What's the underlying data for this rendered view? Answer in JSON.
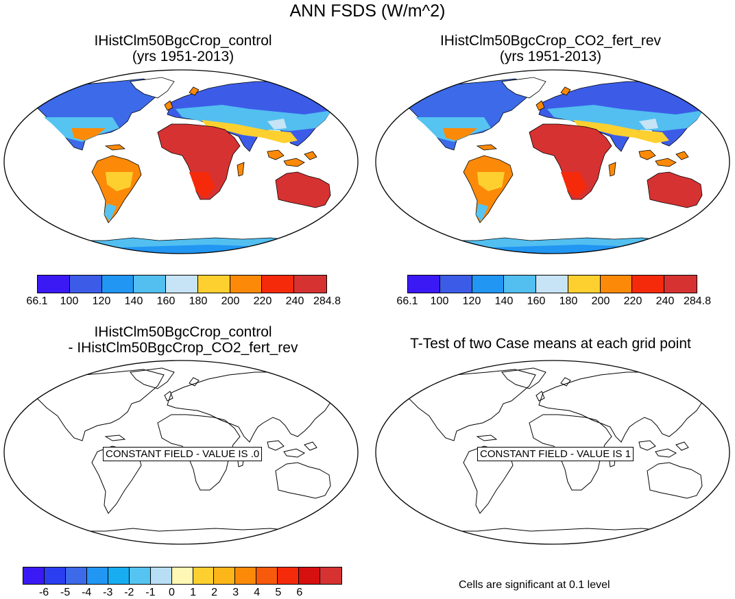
{
  "title": "ANN FSDS (W/m^2)",
  "panels": {
    "tl": {
      "line1": "IHistClm50BgcCrop_control",
      "line2": "(yrs 1951-2013)"
    },
    "tr": {
      "line1": "IHistClm50BgcCrop_CO2_fert_rev",
      "line2": "(yrs 1951-2013)"
    },
    "bl": {
      "line1": "IHistClm50BgcCrop_control",
      "line2": "- IHistClm50BgcCrop_CO2_fert_rev",
      "label": "CONSTANT FIELD - VALUE IS .0"
    },
    "br": {
      "line1": "T-Test of two Case means at each grid point",
      "label": "CONSTANT FIELD - VALUE IS 1"
    }
  },
  "colorbar_top": {
    "colors": [
      "#3b19f5",
      "#3c5ce8",
      "#2196f3",
      "#52bff0",
      "#c6e4f5",
      "#fdd030",
      "#fc8a08",
      "#f52a0a",
      "#d63232"
    ],
    "labels": [
      "66.1",
      "100",
      "120",
      "140",
      "160",
      "180",
      "200",
      "220",
      "240",
      "284.8"
    ]
  },
  "colorbar_bottom": {
    "colors": [
      "#3b19f5",
      "#2b3ef0",
      "#3c6ae8",
      "#2196f3",
      "#18acf0",
      "#56c4f0",
      "#b8def5",
      "#fef8b4",
      "#fdd030",
      "#fcb619",
      "#fc8a08",
      "#f75a0a",
      "#f52a0a",
      "#d60f0f",
      "#d63232"
    ],
    "labels": [
      "-6",
      "-5",
      "-4",
      "-3",
      "-2",
      "-1",
      "0",
      "1",
      "2",
      "3",
      "4",
      "5",
      "6"
    ]
  },
  "note": "Cells are significant at 0.1 level",
  "chart_data": {
    "type": "heatmap",
    "title": "ANN FSDS (W/m^2)",
    "variable": "FSDS",
    "units": "W/m^2",
    "panels": [
      {
        "case": "IHistClm50BgcCrop_control",
        "years": "1951-2013",
        "levels": [
          100,
          120,
          140,
          160,
          180,
          200,
          220,
          240
        ],
        "range": [
          66.1,
          284.8
        ]
      },
      {
        "case": "IHistClm50BgcCrop_CO2_fert_rev",
        "years": "1951-2013",
        "levels": [
          100,
          120,
          140,
          160,
          180,
          200,
          220,
          240
        ],
        "range": [
          66.1,
          284.8
        ]
      },
      {
        "case": "IHistClm50BgcCrop_control - IHistClm50BgcCrop_CO2_fert_rev",
        "constant_value": 0,
        "levels": [
          -6,
          -5,
          -4,
          -3,
          -2,
          -1,
          0,
          1,
          2,
          3,
          4,
          5,
          6
        ]
      },
      {
        "case": "T-Test of two Case means at each grid point",
        "constant_value": 1
      }
    ]
  }
}
